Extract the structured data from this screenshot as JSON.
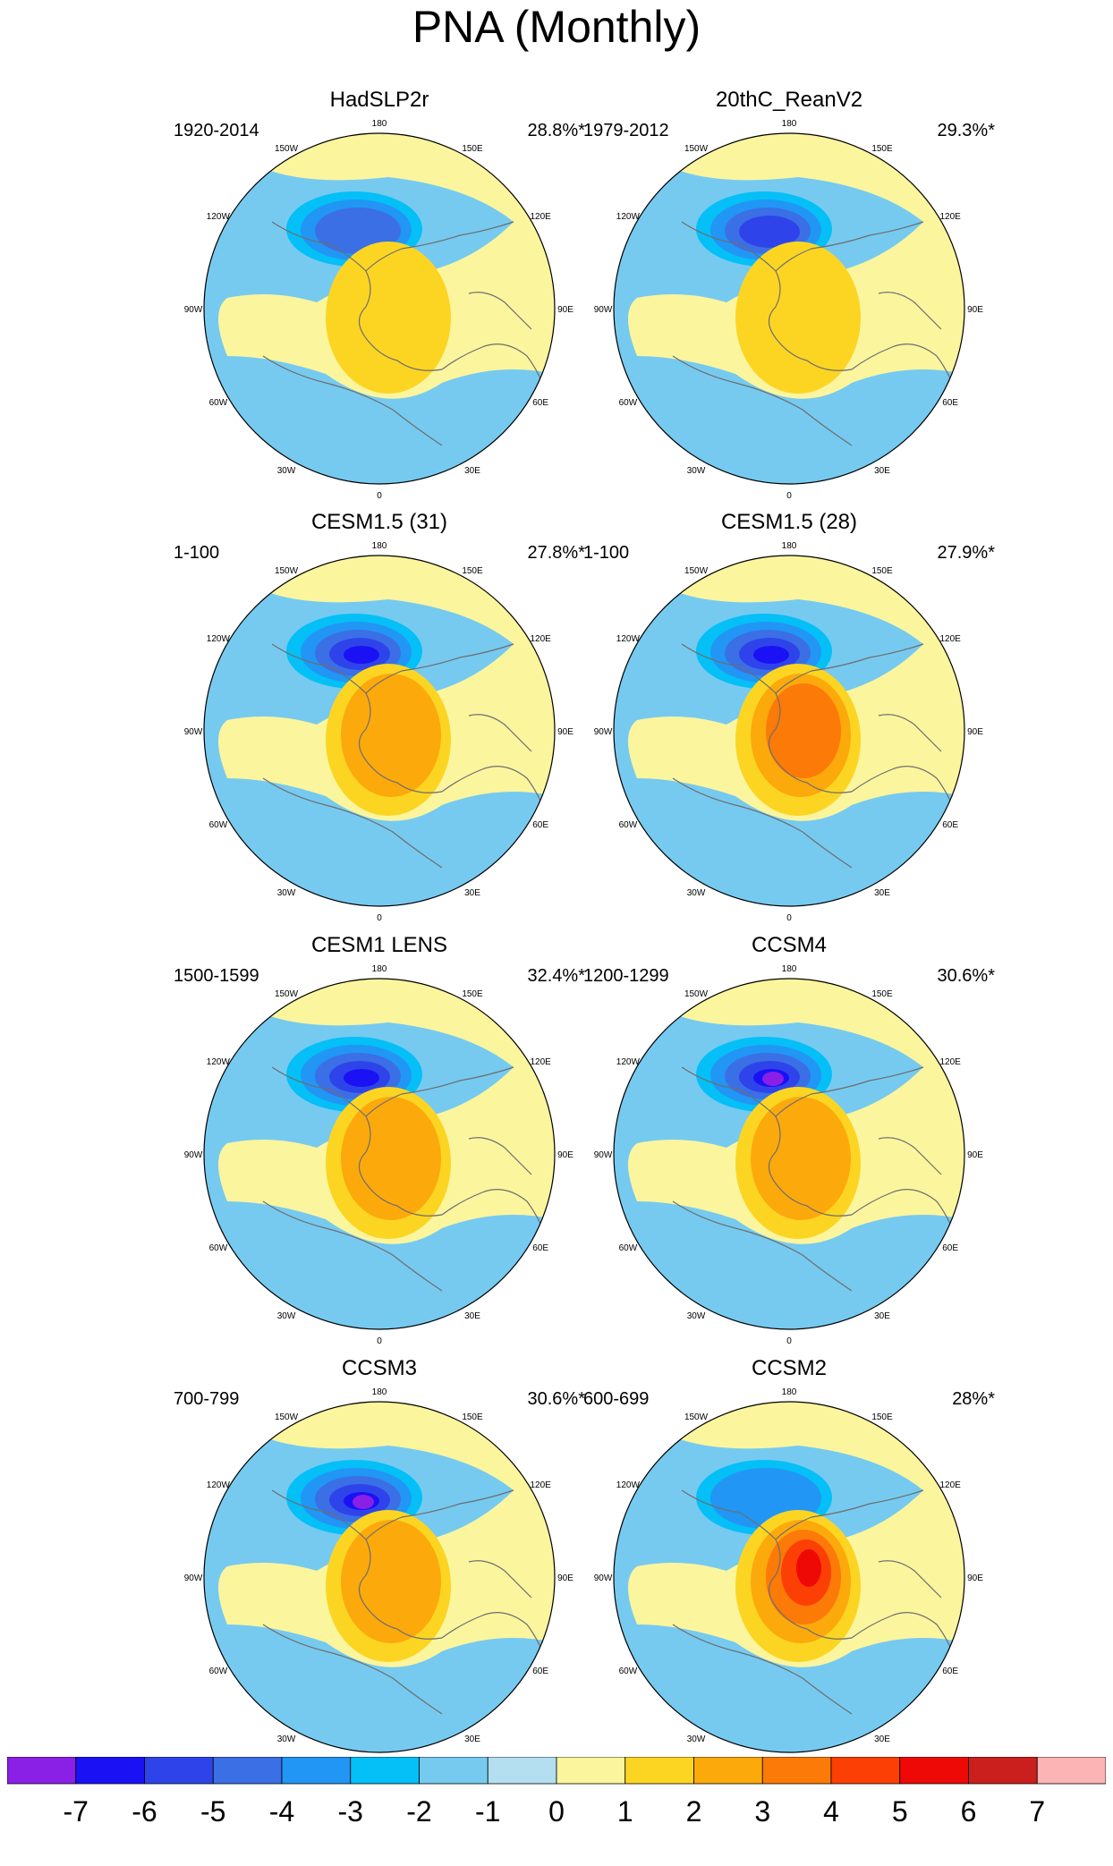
{
  "page_title": "PNA (Monthly)",
  "lon_labels": [
    "180",
    "150E",
    "120E",
    "90E",
    "60E",
    "30E",
    "0",
    "30W",
    "60W",
    "90W",
    "120W",
    "150W"
  ],
  "colors": {
    "map_outline": "#000000",
    "coast": "#6e6e6e"
  },
  "chart_data": {
    "type": "contour-map-panels",
    "title": "PNA (Monthly)",
    "projection": "north polar stereographic",
    "colorbar": {
      "levels": [
        -7,
        -6,
        -5,
        -4,
        -3,
        -2,
        -1,
        0,
        1,
        2,
        3,
        4,
        5,
        6,
        7
      ],
      "labels": [
        "-7",
        "-6",
        "-5",
        "-4",
        "-3",
        "-2",
        "-1",
        "0",
        "1",
        "2",
        "3",
        "4",
        "5",
        "6",
        "7"
      ],
      "colors": [
        "#8a1fe6",
        "#1a11f5",
        "#2e44ea",
        "#3b6fe6",
        "#2196f5",
        "#05bff7",
        "#76caf0",
        "#b3dff1",
        "#fbf59e",
        "#fcd523",
        "#fca90c",
        "#fc7a08",
        "#fc3f04",
        "#ee0907",
        "#ca1f1c",
        "#fcb4b4"
      ]
    },
    "panels": [
      {
        "title": "HadSLP2r",
        "years": "1920-2014",
        "pct": "28.8%*",
        "neg_min": -4,
        "pos_max": 2
      },
      {
        "title": "20thC_ReanV2",
        "years": "1979-2012",
        "pct": "29.3%*",
        "neg_min": -5,
        "pos_max": 2
      },
      {
        "title": "CESM1.5 (31)",
        "years": "1-100",
        "pct": "27.8%*",
        "neg_min": -6,
        "pos_max": 3
      },
      {
        "title": "CESM1.5 (28)",
        "years": "1-100",
        "pct": "27.9%*",
        "neg_min": -6,
        "pos_max": 4
      },
      {
        "title": "CESM1 LENS",
        "years": "1500-1599",
        "pct": "32.4%*",
        "neg_min": -6,
        "pos_max": 3
      },
      {
        "title": "CCSM4",
        "years": "1200-1299",
        "pct": "30.6%*",
        "neg_min": -7,
        "pos_max": 3
      },
      {
        "title": "CCSM3",
        "years": "700-799",
        "pct": "30.6%*",
        "neg_min": -7,
        "pos_max": 3
      },
      {
        "title": "CCSM2",
        "years": "600-699",
        "pct": "28%*",
        "neg_min": -3,
        "pos_max": 6
      }
    ]
  }
}
